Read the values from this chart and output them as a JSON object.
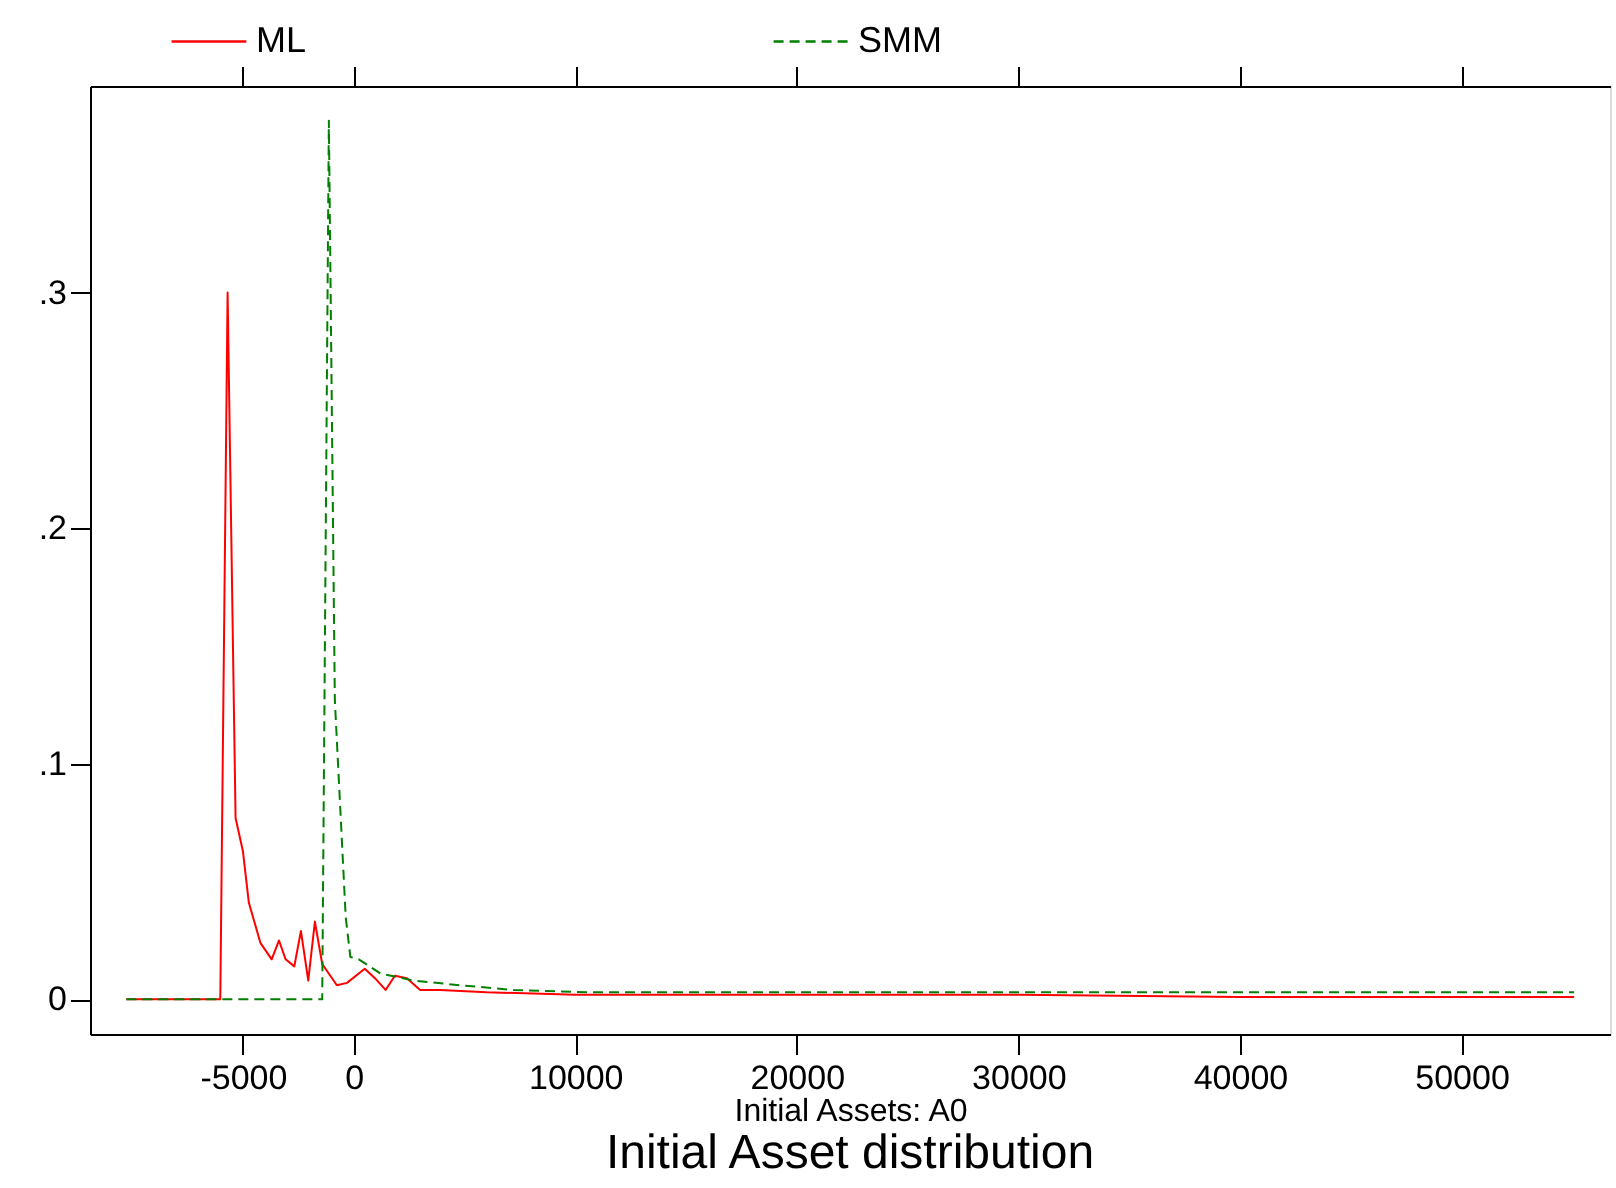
{
  "chart_data": {
    "type": "line",
    "title": "Initial Asset distribution",
    "xlabel": "Initial Assets: A0",
    "xlim": [
      -11900,
      56700
    ],
    "ylim": [
      -0.0147,
      0.3877
    ],
    "xticks": [
      -5000,
      0,
      10000,
      20000,
      30000,
      40000,
      50000
    ],
    "yticks": [
      {
        "value": 0,
        "label": "0"
      },
      {
        "value": 0.1,
        "label": ".1"
      },
      {
        "value": 0.2,
        "label": ".2"
      },
      {
        "value": 0.3,
        "label": ".3"
      }
    ],
    "grid": false,
    "legend": "top",
    "series": [
      {
        "name": "ML",
        "color": "#ff0000",
        "line_style": "solid",
        "x": [
          -10260,
          -6020,
          -5690,
          -5330,
          -5000,
          -4730,
          -4210,
          -3700,
          -3370,
          -3070,
          -2680,
          -2380,
          -2050,
          -1750,
          -1420,
          -760,
          -300,
          500,
          960,
          1440,
          1860,
          2400,
          3000,
          3900,
          6000,
          10000,
          20000,
          30000,
          40000,
          55080
        ],
        "values": [
          0,
          0,
          0.3,
          0.077,
          0.063,
          0.041,
          0.024,
          0.017,
          0.025,
          0.017,
          0.014,
          0.029,
          0.008,
          0.033,
          0.015,
          0.006,
          0.007,
          0.013,
          0.009,
          0.004,
          0.01,
          0.009,
          0.004,
          0.004,
          0.003,
          0.002,
          0.002,
          0.002,
          0.001,
          0.001
        ]
      },
      {
        "name": "SMM",
        "color": "#008000",
        "line_style": "dashed",
        "x": [
          -10260,
          -1420,
          -1120,
          -850,
          -360,
          -150,
          230,
          1200,
          2700,
          4800,
          7200,
          10500,
          20000,
          30000,
          40000,
          55080
        ],
        "values": [
          0,
          0,
          0.373,
          0.127,
          0.035,
          0.018,
          0.017,
          0.011,
          0.008,
          0.006,
          0.004,
          0.003,
          0.003,
          0.003,
          0.003,
          0.003
        ]
      }
    ]
  }
}
